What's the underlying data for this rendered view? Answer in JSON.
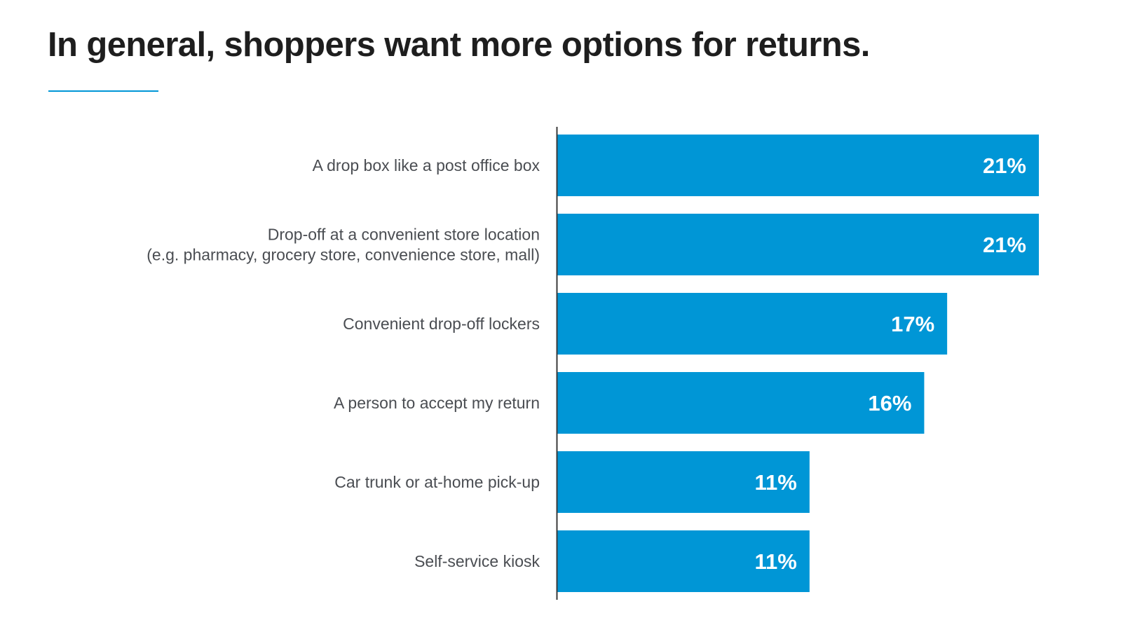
{
  "header": {
    "title": "In general, shoppers want more options for returns."
  },
  "colors": {
    "bar": "#0096D6",
    "title_rule": "#0096D6",
    "axis": "#3a3a3a",
    "title_text": "#1e1e1e",
    "label_text": "#4a4d52",
    "value_text": "#ffffff"
  },
  "chart_data": {
    "type": "bar",
    "orientation": "horizontal",
    "title": "In general, shoppers want more options for returns.",
    "xlabel": "",
    "ylabel": "",
    "xlim": [
      0,
      21
    ],
    "grid": false,
    "legend": "none",
    "categories": [
      [
        "A drop box like a post office box"
      ],
      [
        "Drop-off at a convenient store location",
        "(e.g. pharmacy, grocery store, convenience store, mall)"
      ],
      [
        "Convenient drop-off lockers"
      ],
      [
        "A person to accept my return"
      ],
      [
        "Car trunk or at-home pick-up"
      ],
      [
        "Self-service kiosk"
      ]
    ],
    "values": [
      21,
      21,
      17,
      16,
      11,
      11
    ],
    "value_labels": [
      "21%",
      "21%",
      "17%",
      "16%",
      "11%",
      "11%"
    ]
  }
}
